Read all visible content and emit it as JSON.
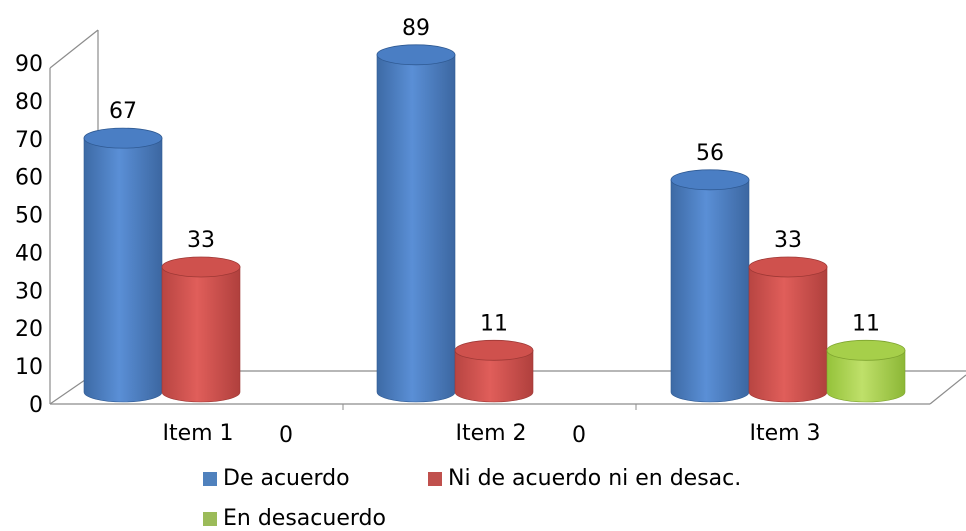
{
  "chart_data": {
    "type": "bar",
    "categories": [
      "Item 1",
      "Item 2",
      "Item 3"
    ],
    "series": [
      {
        "name": "De acuerdo",
        "values": [
          67,
          89,
          56
        ],
        "color": "#4f81bd"
      },
      {
        "name": "Ni de acuerdo ni en desac.",
        "values": [
          33,
          11,
          33
        ],
        "color": "#c0504d"
      },
      {
        "name": "En desacuerdo",
        "values": [
          0,
          0,
          11
        ],
        "color": "#9bbb59"
      }
    ],
    "ylim": [
      0,
      90
    ],
    "yticks": [
      "0",
      "10",
      "20",
      "30",
      "40",
      "50",
      "60",
      "70",
      "80",
      "90"
    ],
    "data_labels": [
      "67",
      "33",
      "0",
      "89",
      "11",
      "0",
      "56",
      "33",
      "11"
    ],
    "legend_position": "bottom",
    "style": "3d-cylinder",
    "grid": false
  }
}
